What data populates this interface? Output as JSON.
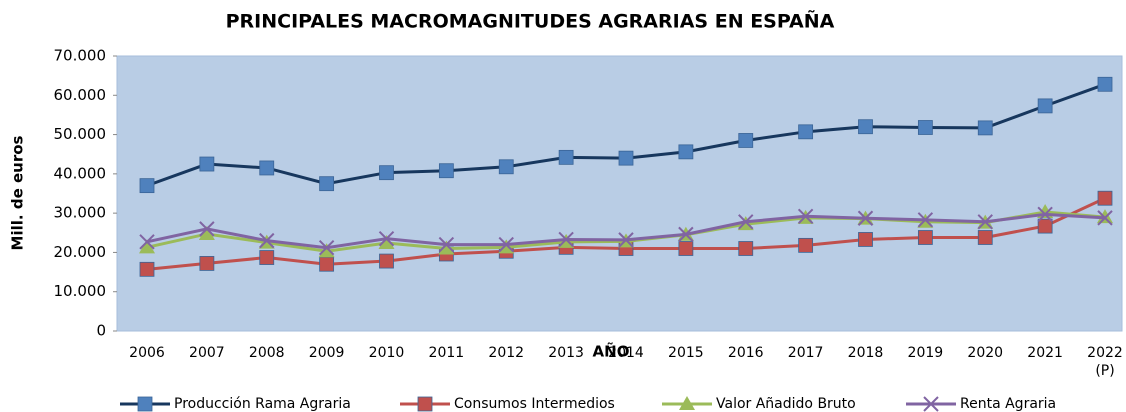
{
  "chart_data": {
    "type": "line",
    "title": "PRINCIPALES MACROMAGNITUDES AGRARIAS EN ESPAÑA",
    "y_label": "Mill. de euros",
    "x_label": "AÑO",
    "categories": [
      "2006",
      "2007",
      "2008",
      "2009",
      "2010",
      "2011",
      "2012",
      "2013",
      "2014",
      "2015",
      "2016",
      "2017",
      "2018",
      "2019",
      "2020",
      "2021",
      "2022\n(P)"
    ],
    "ylim": [
      0,
      70000
    ],
    "yticks": [
      0,
      {
        "value": 10000,
        "label": "10.000"
      },
      {
        "value": 20000,
        "label": "20.000"
      },
      {
        "value": 30000,
        "label": "30.000"
      },
      {
        "value": 40000,
        "label": "40.000"
      },
      {
        "value": 50000,
        "label": "50.000"
      },
      {
        "value": 60000,
        "label": "60.000"
      },
      {
        "value": 70000,
        "label": "70.000"
      }
    ],
    "legend": "bottom",
    "series": [
      {
        "name": "Producción Rama Agraria",
        "color": "#17375e",
        "marker_color": "#4f81bd",
        "marker": "square",
        "values": [
          37000,
          42500,
          41500,
          37500,
          40300,
          40800,
          41800,
          44200,
          44000,
          45600,
          48500,
          50700,
          52000,
          51800,
          51700,
          57300,
          62800
        ]
      },
      {
        "name": "Consumos Intermedios",
        "color": "#c0504d",
        "marker_color": "#c0504d",
        "marker": "square",
        "values": [
          15700,
          17200,
          18700,
          17000,
          17800,
          19600,
          20300,
          21300,
          21000,
          21000,
          21000,
          21800,
          23300,
          23800,
          23800,
          26700,
          33800
        ]
      },
      {
        "name": "Valor Añadido Bruto",
        "color": "#9bbb59",
        "marker_color": "#9bbb59",
        "marker": "triangle",
        "values": [
          21300,
          24700,
          22500,
          20300,
          22400,
          21000,
          21300,
          22700,
          22800,
          24500,
          27200,
          28800,
          28600,
          27800,
          27600,
          30300,
          29000
        ]
      },
      {
        "name": "Renta Agraria",
        "color": "#8064a2",
        "marker_color": "#8064a2",
        "marker": "x",
        "values": [
          22700,
          26000,
          23000,
          21200,
          23500,
          22000,
          22000,
          23300,
          23200,
          24600,
          27800,
          29200,
          28700,
          28300,
          27800,
          29700,
          28800
        ]
      }
    ]
  }
}
